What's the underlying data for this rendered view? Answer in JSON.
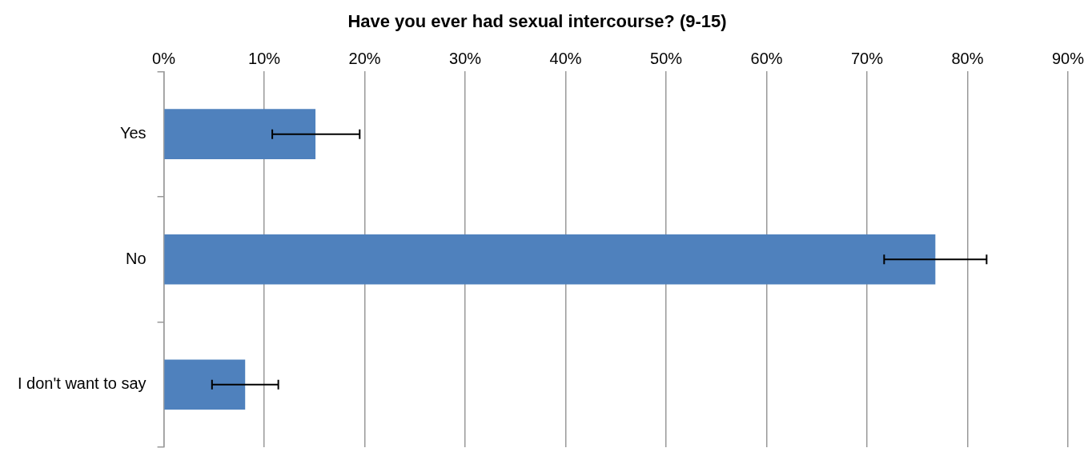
{
  "chart_data": {
    "type": "bar",
    "orientation": "horizontal",
    "title": "Have you ever had sexual intercourse? (9-15)",
    "categories": [
      "Yes",
      "No",
      "I don't want to say"
    ],
    "values": [
      15.1,
      76.8,
      8.1
    ],
    "errors": [
      [
        10.8,
        19.5
      ],
      [
        71.7,
        81.9
      ],
      [
        4.8,
        11.4
      ]
    ],
    "color": "#4f81bd",
    "xlim": [
      0,
      90
    ],
    "xticks": [
      {
        "value": 0,
        "label": "0%"
      },
      {
        "value": 10,
        "label": "10%"
      },
      {
        "value": 20,
        "label": "20%"
      },
      {
        "value": 30,
        "label": "30%"
      },
      {
        "value": 40,
        "label": "40%"
      },
      {
        "value": 50,
        "label": "50%"
      },
      {
        "value": 60,
        "label": "60%"
      },
      {
        "value": 70,
        "label": "70%"
      },
      {
        "value": 80,
        "label": "80%"
      },
      {
        "value": 90,
        "label": "90%"
      }
    ],
    "grid": "x",
    "legend": false
  }
}
